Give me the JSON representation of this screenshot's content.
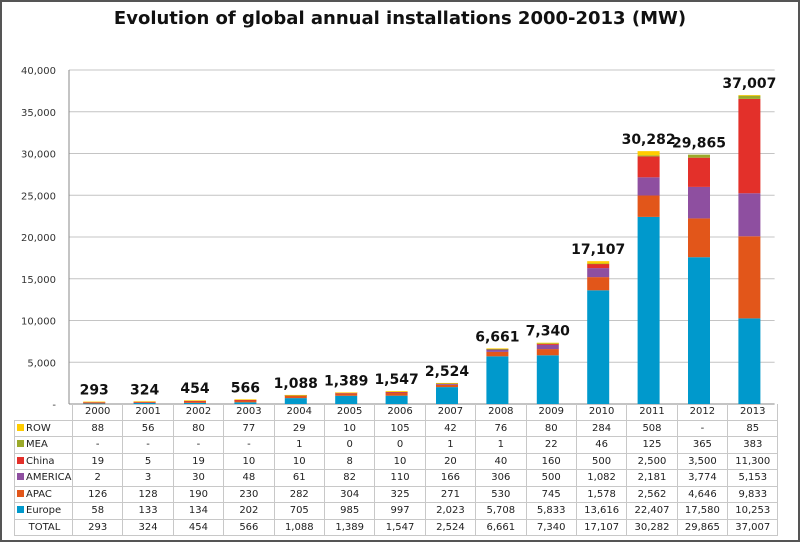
{
  "chart_data": {
    "type": "bar",
    "stacked": true,
    "title": "Evolution of global annual installations 2000-2013 (MW)",
    "categories": [
      "2000",
      "2001",
      "2002",
      "2003",
      "2004",
      "2005",
      "2006",
      "2007",
      "2008",
      "2009",
      "2010",
      "2011",
      "2012",
      "2013"
    ],
    "series": [
      {
        "name": "ROW",
        "color": "#FFCC00",
        "values": [
          "88",
          "56",
          "80",
          "77",
          "29",
          "10",
          "105",
          "42",
          "76",
          "80",
          "284",
          "508",
          "-",
          "85"
        ]
      },
      {
        "name": "MEA",
        "color": "#9BAA2A",
        "values": [
          "-",
          "-",
          "-",
          "-",
          "1",
          "0",
          "0",
          "1",
          "1",
          "22",
          "46",
          "125",
          "365",
          "383"
        ]
      },
      {
        "name": "China",
        "color": "#E3302A",
        "values": [
          "19",
          "5",
          "19",
          "10",
          "10",
          "8",
          "10",
          "20",
          "40",
          "160",
          "500",
          "2,500",
          "3,500",
          "11,300"
        ]
      },
      {
        "name": "AMERICA",
        "color": "#8E4FA0",
        "values": [
          "2",
          "3",
          "30",
          "48",
          "61",
          "82",
          "110",
          "166",
          "306",
          "500",
          "1,082",
          "2,181",
          "3,774",
          "5,153"
        ]
      },
      {
        "name": "APAC",
        "color": "#E2561A",
        "values": [
          "126",
          "128",
          "190",
          "230",
          "282",
          "304",
          "325",
          "271",
          "530",
          "745",
          "1,578",
          "2,562",
          "4,646",
          "9,833"
        ]
      },
      {
        "name": "Europe",
        "color": "#0099CC",
        "values": [
          "58",
          "133",
          "134",
          "202",
          "705",
          "985",
          "997",
          "2,023",
          "5,708",
          "5,833",
          "13,616",
          "22,407",
          "17,580",
          "10,253"
        ]
      }
    ],
    "totals_label": "TOTAL",
    "totals": [
      "293",
      "324",
      "454",
      "566",
      "1,088",
      "1,389",
      "1,547",
      "2,524",
      "6,661",
      "7,340",
      "17,107",
      "30,282",
      "29,865",
      "37,007"
    ],
    "yticks": [
      "-",
      "5,000",
      "10,000",
      "15,000",
      "20,000",
      "25,000",
      "30,000",
      "35,000",
      "40,000"
    ],
    "ylim": [
      0,
      40000
    ],
    "grid": true,
    "legend": "data-table"
  }
}
